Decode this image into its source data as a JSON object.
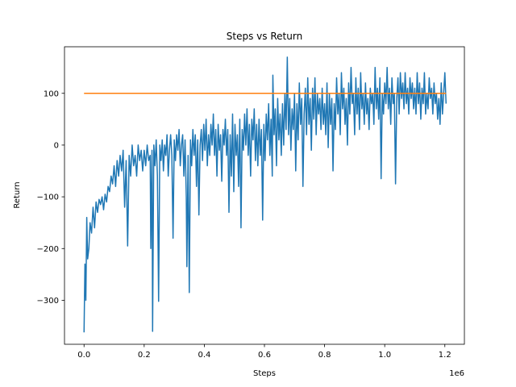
{
  "chart_data": {
    "type": "line",
    "title": "Steps vs Return",
    "xlabel": "Steps",
    "ylabel": "Return",
    "x_offset_label": "1e6",
    "xlim": [
      -65000,
      1265000
    ],
    "ylim": [
      -385,
      190
    ],
    "grid": false,
    "x_ticks": [
      0,
      200000,
      400000,
      600000,
      800000,
      1000000,
      1200000
    ],
    "x_tick_labels": [
      "0.0",
      "0.2",
      "0.4",
      "0.6",
      "0.8",
      "1.0",
      "1.2"
    ],
    "y_ticks": [
      -300,
      -200,
      -100,
      0,
      100
    ],
    "y_tick_labels": [
      "−300",
      "−200",
      "−100",
      "0",
      "100"
    ],
    "series": [
      {
        "color": "#1f77b4",
        "points": [
          [
            0,
            -362
          ],
          [
            3000,
            -230
          ],
          [
            6000,
            -300
          ],
          [
            9000,
            -140
          ],
          [
            12000,
            -220
          ],
          [
            16000,
            -200
          ],
          [
            20000,
            -150
          ],
          [
            25000,
            -170
          ],
          [
            30000,
            -120
          ],
          [
            35000,
            -160
          ],
          [
            40000,
            -110
          ],
          [
            45000,
            -130
          ],
          [
            50000,
            -105
          ],
          [
            55000,
            -115
          ],
          [
            60000,
            -100
          ],
          [
            65000,
            -125
          ],
          [
            70000,
            -95
          ],
          [
            75000,
            -110
          ],
          [
            80000,
            -80
          ],
          [
            85000,
            -90
          ],
          [
            90000,
            -60
          ],
          [
            95000,
            -75
          ],
          [
            100000,
            -40
          ],
          [
            105000,
            -80
          ],
          [
            110000,
            -30
          ],
          [
            115000,
            -60
          ],
          [
            120000,
            -20
          ],
          [
            125000,
            -50
          ],
          [
            130000,
            -10
          ],
          [
            135000,
            -120
          ],
          [
            140000,
            -30
          ],
          [
            145000,
            -195
          ],
          [
            150000,
            -20
          ],
          [
            155000,
            -60
          ],
          [
            160000,
            0
          ],
          [
            165000,
            -40
          ],
          [
            170000,
            -20
          ],
          [
            175000,
            -60
          ],
          [
            180000,
            0
          ],
          [
            185000,
            -30
          ],
          [
            190000,
            -10
          ],
          [
            195000,
            -50
          ],
          [
            200000,
            -10
          ],
          [
            205000,
            -40
          ],
          [
            210000,
            0
          ],
          [
            215000,
            -30
          ],
          [
            220000,
            -20
          ],
          [
            222000,
            -200
          ],
          [
            226000,
            -10
          ],
          [
            228000,
            -360
          ],
          [
            232000,
            0
          ],
          [
            236000,
            -40
          ],
          [
            240000,
            10
          ],
          [
            244000,
            -60
          ],
          [
            248000,
            -302
          ],
          [
            252000,
            0
          ],
          [
            256000,
            -30
          ],
          [
            260000,
            10
          ],
          [
            264000,
            -50
          ],
          [
            268000,
            0
          ],
          [
            272000,
            -20
          ],
          [
            276000,
            20
          ],
          [
            280000,
            -60
          ],
          [
            284000,
            -10
          ],
          [
            288000,
            20
          ],
          [
            292000,
            -20
          ],
          [
            296000,
            -180
          ],
          [
            300000,
            10
          ],
          [
            304000,
            -30
          ],
          [
            308000,
            20
          ],
          [
            312000,
            -10
          ],
          [
            316000,
            30
          ],
          [
            320000,
            -40
          ],
          [
            324000,
            0
          ],
          [
            328000,
            20
          ],
          [
            332000,
            -60
          ],
          [
            336000,
            10
          ],
          [
            340000,
            -100
          ],
          [
            342000,
            -235
          ],
          [
            346000,
            -20
          ],
          [
            350000,
            -285
          ],
          [
            354000,
            10
          ],
          [
            358000,
            -40
          ],
          [
            362000,
            30
          ],
          [
            366000,
            -20
          ],
          [
            370000,
            20
          ],
          [
            374000,
            -80
          ],
          [
            378000,
            10
          ],
          [
            382000,
            -135
          ],
          [
            386000,
            0
          ],
          [
            390000,
            30
          ],
          [
            394000,
            -30
          ],
          [
            398000,
            40
          ],
          [
            402000,
            -10
          ],
          [
            406000,
            50
          ],
          [
            410000,
            -40
          ],
          [
            414000,
            20
          ],
          [
            418000,
            -20
          ],
          [
            422000,
            40
          ],
          [
            426000,
            0
          ],
          [
            430000,
            60
          ],
          [
            434000,
            -20
          ],
          [
            438000,
            30
          ],
          [
            442000,
            -60
          ],
          [
            446000,
            40
          ],
          [
            450000,
            -10
          ],
          [
            454000,
            20
          ],
          [
            458000,
            -70
          ],
          [
            462000,
            30
          ],
          [
            466000,
            0
          ],
          [
            470000,
            50
          ],
          [
            474000,
            -20
          ],
          [
            478000,
            30
          ],
          [
            482000,
            -130
          ],
          [
            486000,
            20
          ],
          [
            490000,
            -60
          ],
          [
            494000,
            60
          ],
          [
            498000,
            -90
          ],
          [
            502000,
            40
          ],
          [
            506000,
            -20
          ],
          [
            510000,
            20
          ],
          [
            514000,
            -80
          ],
          [
            518000,
            50
          ],
          [
            522000,
            -160
          ],
          [
            526000,
            30
          ],
          [
            530000,
            -10
          ],
          [
            534000,
            60
          ],
          [
            538000,
            0
          ],
          [
            542000,
            70
          ],
          [
            546000,
            -20
          ],
          [
            550000,
            40
          ],
          [
            554000,
            -60
          ],
          [
            558000,
            50
          ],
          [
            562000,
            10
          ],
          [
            566000,
            70
          ],
          [
            570000,
            -30
          ],
          [
            574000,
            40
          ],
          [
            578000,
            -40
          ],
          [
            582000,
            50
          ],
          [
            586000,
            -20
          ],
          [
            590000,
            30
          ],
          [
            594000,
            -145
          ],
          [
            598000,
            40
          ],
          [
            602000,
            -30
          ],
          [
            606000,
            60
          ],
          [
            610000,
            10
          ],
          [
            614000,
            80
          ],
          [
            618000,
            -20
          ],
          [
            622000,
            50
          ],
          [
            626000,
            -60
          ],
          [
            628000,
            135
          ],
          [
            632000,
            20
          ],
          [
            636000,
            70
          ],
          [
            640000,
            -40
          ],
          [
            644000,
            90
          ],
          [
            648000,
            10
          ],
          [
            652000,
            60
          ],
          [
            656000,
            -20
          ],
          [
            660000,
            80
          ],
          [
            664000,
            0
          ],
          [
            668000,
            100
          ],
          [
            672000,
            30
          ],
          [
            676000,
            170
          ],
          [
            680000,
            20
          ],
          [
            684000,
            90
          ],
          [
            688000,
            -10
          ],
          [
            692000,
            70
          ],
          [
            696000,
            30
          ],
          [
            700000,
            100
          ],
          [
            704000,
            -50
          ],
          [
            708000,
            80
          ],
          [
            712000,
            10
          ],
          [
            716000,
            120
          ],
          [
            720000,
            40
          ],
          [
            724000,
            90
          ],
          [
            728000,
            -80
          ],
          [
            732000,
            60
          ],
          [
            736000,
            110
          ],
          [
            740000,
            20
          ],
          [
            744000,
            130
          ],
          [
            748000,
            40
          ],
          [
            752000,
            90
          ],
          [
            756000,
            -10
          ],
          [
            760000,
            110
          ],
          [
            764000,
            50
          ],
          [
            768000,
            130
          ],
          [
            772000,
            20
          ],
          [
            776000,
            100
          ],
          [
            780000,
            60
          ],
          [
            784000,
            90
          ],
          [
            788000,
            30
          ],
          [
            792000,
            110
          ],
          [
            796000,
            40
          ],
          [
            800000,
            80
          ],
          [
            804000,
            20
          ],
          [
            808000,
            120
          ],
          [
            812000,
            -5
          ],
          [
            816000,
            100
          ],
          [
            820000,
            40
          ],
          [
            824000,
            90
          ],
          [
            828000,
            -50
          ],
          [
            832000,
            80
          ],
          [
            836000,
            30
          ],
          [
            840000,
            130
          ],
          [
            844000,
            60
          ],
          [
            848000,
            100
          ],
          [
            852000,
            20
          ],
          [
            856000,
            140
          ],
          [
            860000,
            70
          ],
          [
            864000,
            110
          ],
          [
            868000,
            40
          ],
          [
            872000,
            90
          ],
          [
            876000,
            0
          ],
          [
            880000,
            120
          ],
          [
            884000,
            60
          ],
          [
            888000,
            150
          ],
          [
            892000,
            80
          ],
          [
            896000,
            100
          ],
          [
            900000,
            20
          ],
          [
            904000,
            130
          ],
          [
            908000,
            60
          ],
          [
            912000,
            110
          ],
          [
            916000,
            30
          ],
          [
            920000,
            140
          ],
          [
            924000,
            70
          ],
          [
            928000,
            100
          ],
          [
            932000,
            40
          ],
          [
            936000,
            120
          ],
          [
            940000,
            60
          ],
          [
            944000,
            90
          ],
          [
            948000,
            30
          ],
          [
            952000,
            110
          ],
          [
            956000,
            80
          ],
          [
            960000,
            100
          ],
          [
            964000,
            40
          ],
          [
            968000,
            150
          ],
          [
            972000,
            70
          ],
          [
            976000,
            110
          ],
          [
            980000,
            50
          ],
          [
            984000,
            130
          ],
          [
            988000,
            -65
          ],
          [
            992000,
            100
          ],
          [
            996000,
            60
          ],
          [
            1000000,
            120
          ],
          [
            1004000,
            80
          ],
          [
            1008000,
            150
          ],
          [
            1012000,
            70
          ],
          [
            1016000,
            110
          ],
          [
            1020000,
            40
          ],
          [
            1024000,
            130
          ],
          [
            1028000,
            80
          ],
          [
            1032000,
            100
          ],
          [
            1036000,
            -75
          ],
          [
            1040000,
            90
          ],
          [
            1044000,
            130
          ],
          [
            1048000,
            60
          ],
          [
            1052000,
            140
          ],
          [
            1056000,
            90
          ],
          [
            1060000,
            120
          ],
          [
            1064000,
            70
          ],
          [
            1068000,
            140
          ],
          [
            1072000,
            80
          ],
          [
            1076000,
            110
          ],
          [
            1080000,
            60
          ],
          [
            1084000,
            130
          ],
          [
            1088000,
            90
          ],
          [
            1092000,
            120
          ],
          [
            1096000,
            70
          ],
          [
            1100000,
            110
          ],
          [
            1104000,
            60
          ],
          [
            1108000,
            140
          ],
          [
            1112000,
            80
          ],
          [
            1116000,
            120
          ],
          [
            1120000,
            50
          ],
          [
            1124000,
            110
          ],
          [
            1128000,
            80
          ],
          [
            1132000,
            140
          ],
          [
            1136000,
            60
          ],
          [
            1140000,
            100
          ],
          [
            1144000,
            70
          ],
          [
            1148000,
            130
          ],
          [
            1152000,
            90
          ],
          [
            1156000,
            110
          ],
          [
            1160000,
            60
          ],
          [
            1164000,
            120
          ],
          [
            1168000,
            80
          ],
          [
            1172000,
            100
          ],
          [
            1176000,
            50
          ],
          [
            1180000,
            90
          ],
          [
            1184000,
            40
          ],
          [
            1188000,
            120
          ],
          [
            1192000,
            60
          ],
          [
            1196000,
            100
          ],
          [
            1200000,
            140
          ],
          [
            1204000,
            80
          ]
        ]
      },
      {
        "color": "#ff7f0e",
        "points": [
          [
            0,
            100
          ],
          [
            1204000,
            100
          ]
        ]
      }
    ]
  }
}
